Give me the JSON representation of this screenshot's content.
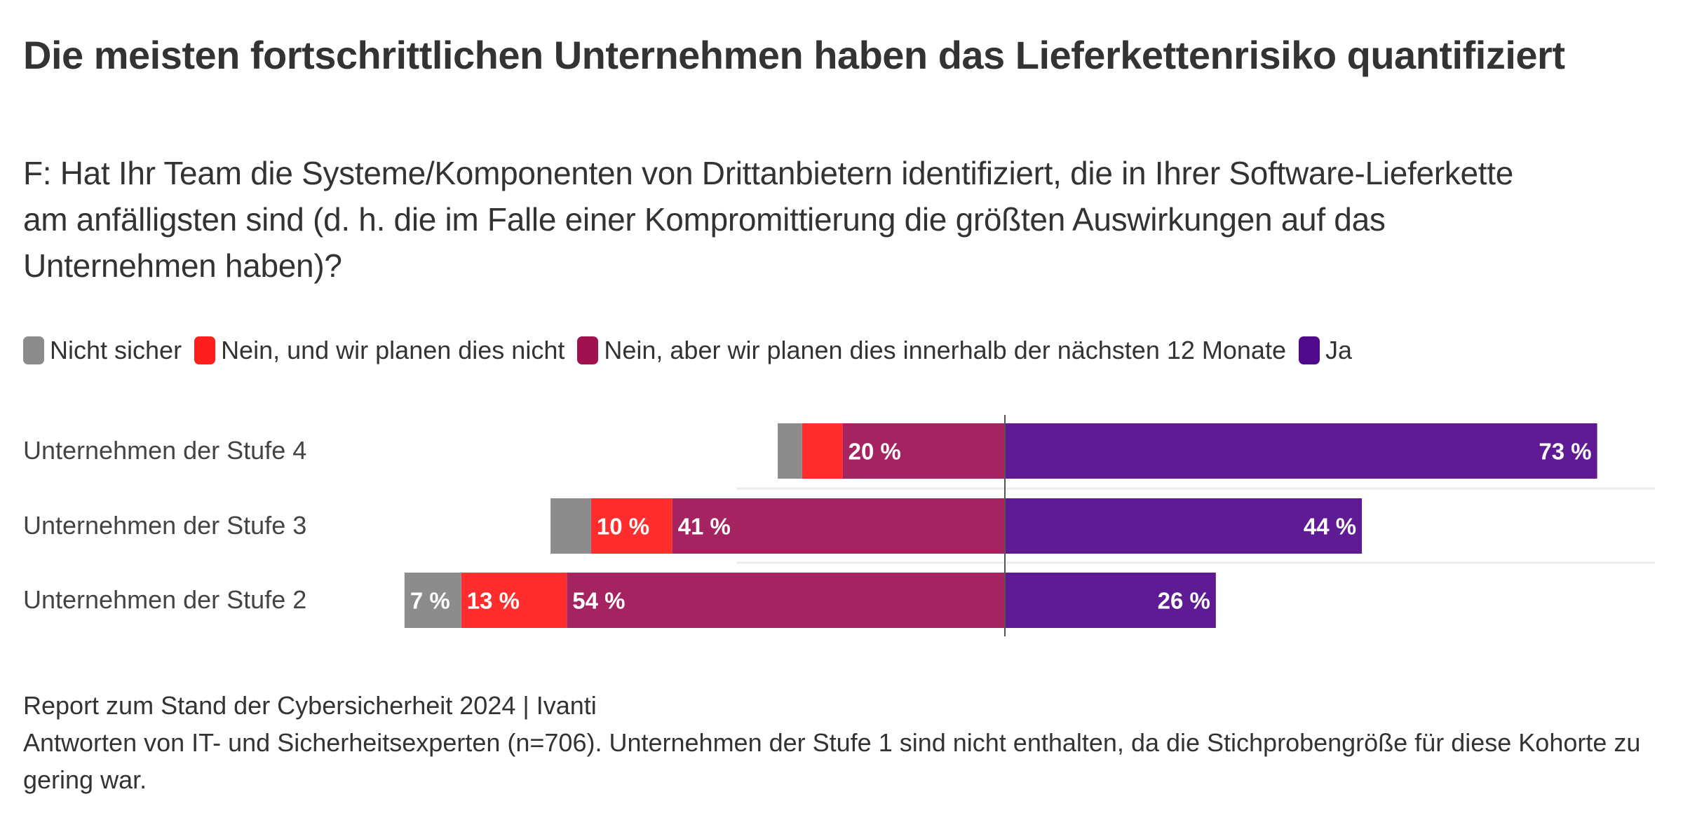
{
  "header": {
    "title": "Die meisten fortschrittlichen Unternehmen haben das Lieferkettenrisiko quantifiziert",
    "subtitle": "F: Hat Ihr Team die Systeme/Komponenten von Drittanbietern identifiziert, die in Ihrer Software-Lieferkette am anfälligsten sind (d. h. die im Falle einer Kompromittierung die größten Auswirkungen auf das Unternehmen haben)?"
  },
  "legend": [
    {
      "label": "Nicht sicher",
      "color": "#8c8c8c"
    },
    {
      "label": "Nein, und wir planen dies nicht",
      "color": "#ff1e1e"
    },
    {
      "label": "Nein, aber wir planen dies innerhalb der nächsten 12 Monate",
      "color": "#a0114f"
    },
    {
      "label": "Ja",
      "color": "#4f0b8c"
    }
  ],
  "chart_data": {
    "type": "bar",
    "orientation": "horizontal",
    "stacking": "diverging",
    "title": "Die meisten fortschrittlichen Unternehmen haben das Lieferkettenrisiko quantifiziert",
    "subtitle": "F: Hat Ihr Team die Systeme/Komponenten von Drittanbietern identifiziert, die in Ihrer Software-Lieferkette am anfälligsten sind (d. h. die im Falle einer Kompromittierung die größten Auswirkungen auf das Unternehmen haben)?",
    "xlabel": "",
    "ylabel": "",
    "unit": "%",
    "categories": [
      "Unternehmen der Stufe 4",
      "Unternehmen der Stufe 3",
      "Unternehmen der Stufe 2"
    ],
    "series": [
      {
        "name": "Nicht sicher",
        "side": "negative",
        "color": "#8c8c8c",
        "values": [
          3,
          5,
          7
        ],
        "labels": [
          "",
          "",
          "7 %"
        ]
      },
      {
        "name": "Nein, und wir planen dies nicht",
        "side": "negative",
        "color": "#ff2d2d",
        "values": [
          5,
          10,
          13
        ],
        "labels": [
          "",
          "10 %",
          "13 %"
        ]
      },
      {
        "name": "Nein, aber wir planen dies innerhalb der nächsten 12 Monate",
        "side": "negative",
        "color": "#a52360",
        "values": [
          20,
          41,
          54
        ],
        "labels": [
          "20 %",
          "41 %",
          "54 %"
        ]
      },
      {
        "name": "Ja",
        "side": "positive",
        "color": "#5e1b94",
        "values": [
          73,
          44,
          26
        ],
        "labels": [
          "73 %",
          "44 %",
          "26 %"
        ]
      }
    ],
    "grid": false,
    "legend_position": "top-left"
  },
  "footer": {
    "source": "Report zum Stand der Cybersicherheit 2024 | Ivanti",
    "note": "Antworten von IT- und Sicherheitsexperten (n=706). Unternehmen der Stufe 1 sind nicht enthalten, da die Stichprobengröße für diese Kohorte zu gering war."
  }
}
